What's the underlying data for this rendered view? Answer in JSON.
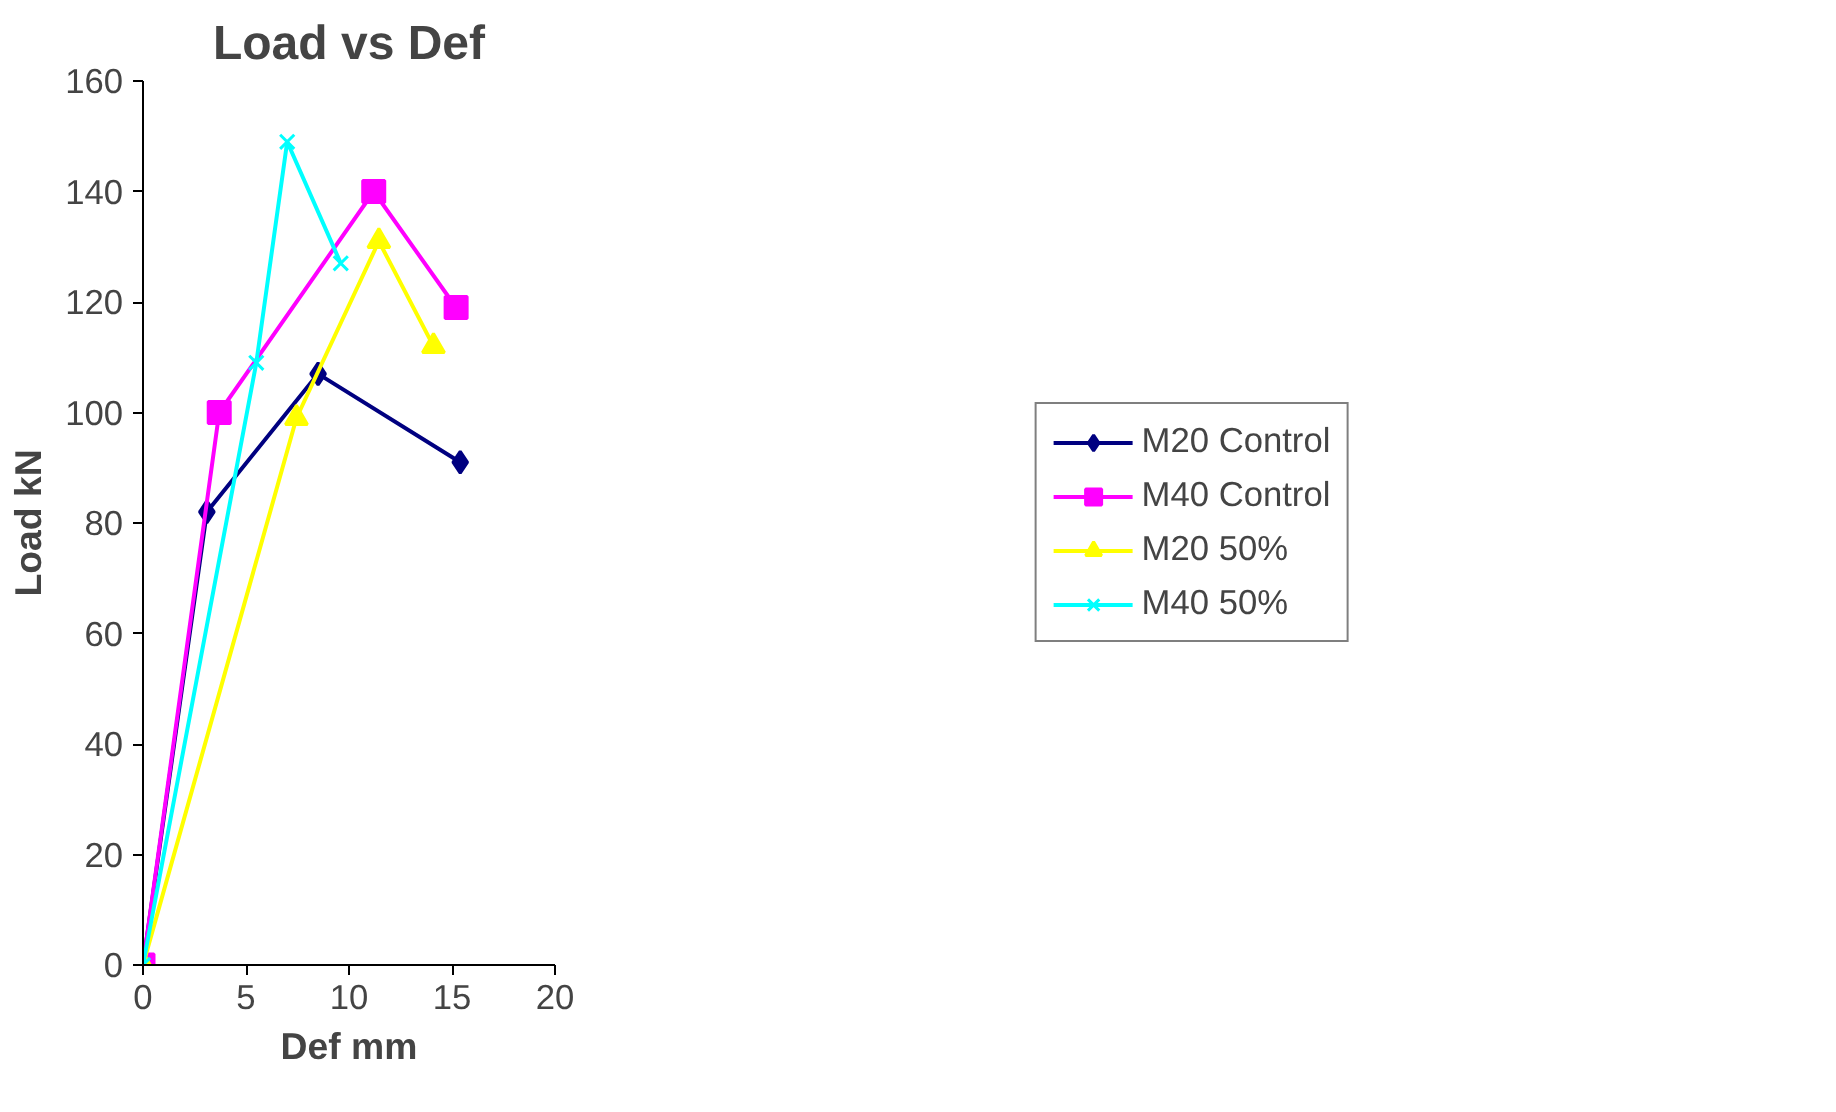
{
  "chart_data": {
    "type": "line",
    "title": "Load vs Def",
    "xlabel": "Def mm",
    "ylabel": "Load kN",
    "xlim": [
      0,
      20
    ],
    "xticks": [
      0,
      5,
      10,
      15,
      20
    ],
    "ylim": [
      0,
      160
    ],
    "yticks": [
      0,
      20,
      40,
      60,
      80,
      100,
      120,
      140,
      160
    ],
    "grid": false,
    "legend": "right",
    "series": [
      {
        "name": "M20 Control",
        "color": "#000080",
        "marker": "diamond",
        "x": [
          0,
          3.1,
          8.5,
          15.4
        ],
        "values": [
          0,
          82,
          107,
          91
        ]
      },
      {
        "name": "M40 Control",
        "color": "#ff00ff",
        "marker": "square",
        "x": [
          0,
          3.7,
          11.2,
          15.2
        ],
        "values": [
          0,
          100,
          140,
          119
        ]
      },
      {
        "name": "M20 50%",
        "color": "#ffff00",
        "marker": "triangle",
        "x": [
          0,
          7.45,
          11.45,
          14.1
        ],
        "values": [
          0,
          99,
          131,
          112
        ]
      },
      {
        "name": "M40 50%",
        "color": "#00ffff",
        "marker": "x",
        "x": [
          0,
          5.5,
          7.0,
          9.6
        ],
        "values": [
          0,
          109,
          149,
          127
        ]
      }
    ]
  }
}
